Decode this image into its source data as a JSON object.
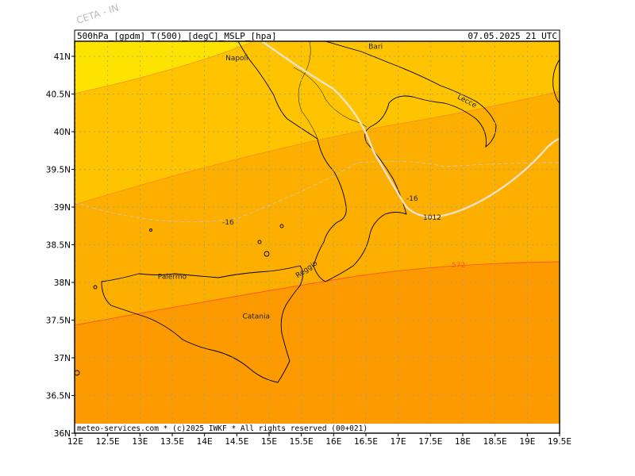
{
  "watermark": "CETA - IN",
  "header": {
    "left": "500hPa_[gpdm]_T(500)_[degC]_MSLP_[hpa]",
    "right": "07.05.2025 21 UTC"
  },
  "footer": "meteo-services.com * (c)2025 IWKF * All rights reserved (00+021)",
  "axes": {
    "lon_ticks": [
      "12E",
      "12.5E",
      "13E",
      "13.5E",
      "14E",
      "14.5E",
      "15E",
      "15.5E",
      "16E",
      "16.5E",
      "17E",
      "17.5E",
      "18E",
      "18.5E",
      "19E",
      "19.5E"
    ],
    "lat_ticks": [
      "41N",
      "40.5N",
      "40N",
      "39.5N",
      "39N",
      "38.5N",
      "38N",
      "37.5N",
      "37N",
      "36.5N",
      "36N"
    ]
  },
  "cities": [
    {
      "name": "Napoli",
      "lon": 14.5,
      "lat": 40.95
    },
    {
      "name": "Bari",
      "lon": 16.65,
      "lat": 41.1
    },
    {
      "name": "Lecce",
      "lon": 18.05,
      "lat": 40.38
    },
    {
      "name": "Palermo",
      "lon": 13.5,
      "lat": 38.05
    },
    {
      "name": "Catania",
      "lon": 14.8,
      "lat": 37.52
    },
    {
      "name": "Reggio",
      "lon": 15.6,
      "lat": 38.15
    }
  ],
  "contour_labels": {
    "isobar": "1012",
    "temp_a": "-16",
    "temp_b": "-16",
    "geopot": "572"
  },
  "colors": {
    "band1": "#fde400",
    "band2": "#fec400",
    "band3": "#fdaf00",
    "band4": "#fc9a00",
    "band5": "#fca52a",
    "isobar": "#f0e2c8",
    "geopot": "#ff5520",
    "coast": "#000000",
    "grid": "#9a9a9a"
  }
}
